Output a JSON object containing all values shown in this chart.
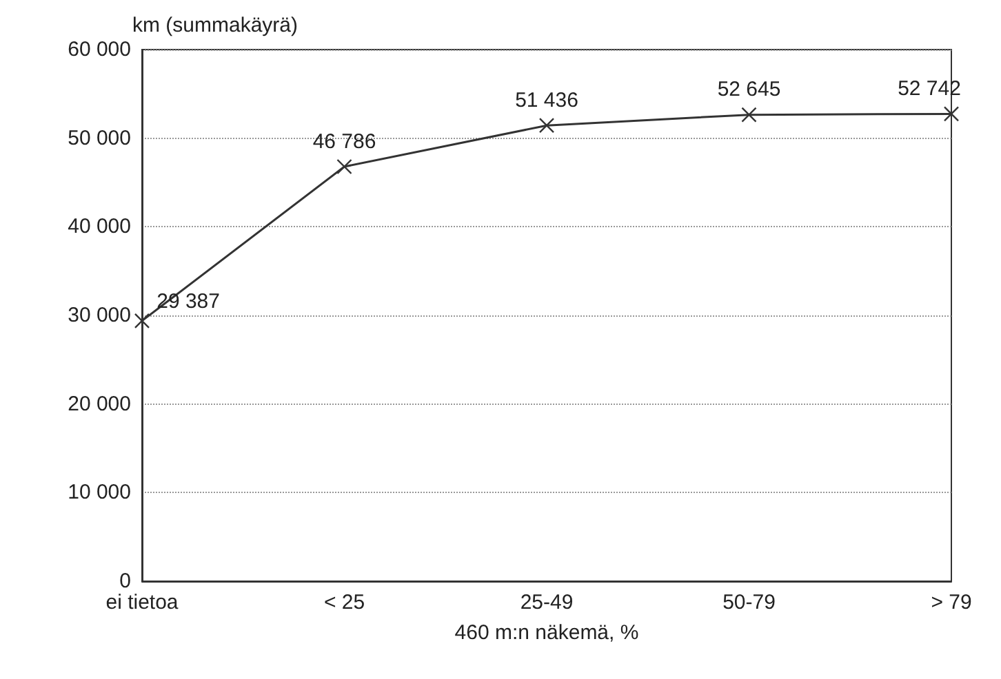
{
  "chart_data": {
    "type": "line",
    "ylabel": "km (summakäyrä)",
    "xlabel": "460 m:n näkemä, %",
    "categories": [
      "ei tietoa",
      "< 25",
      "25-49",
      "50-79",
      "> 79"
    ],
    "series": [
      {
        "color": "#333333",
        "values": [
          29387,
          46786,
          51436,
          52645,
          52742
        ],
        "value_labels": [
          "29 387",
          "46 786",
          "51 436",
          "52 645",
          "52 742"
        ]
      }
    ],
    "ylim": [
      0,
      60000
    ],
    "yticks": [
      {
        "value": 0,
        "label": "0"
      },
      {
        "value": 10000,
        "label": "10 000"
      },
      {
        "value": 20000,
        "label": "20 000"
      },
      {
        "value": 30000,
        "label": "30 000"
      },
      {
        "value": 40000,
        "label": "40 000"
      },
      {
        "value": 50000,
        "label": "50 000"
      },
      {
        "value": 60000,
        "label": "60 000"
      }
    ],
    "grid": "y",
    "marker": "cross",
    "line_style": "solid"
  }
}
